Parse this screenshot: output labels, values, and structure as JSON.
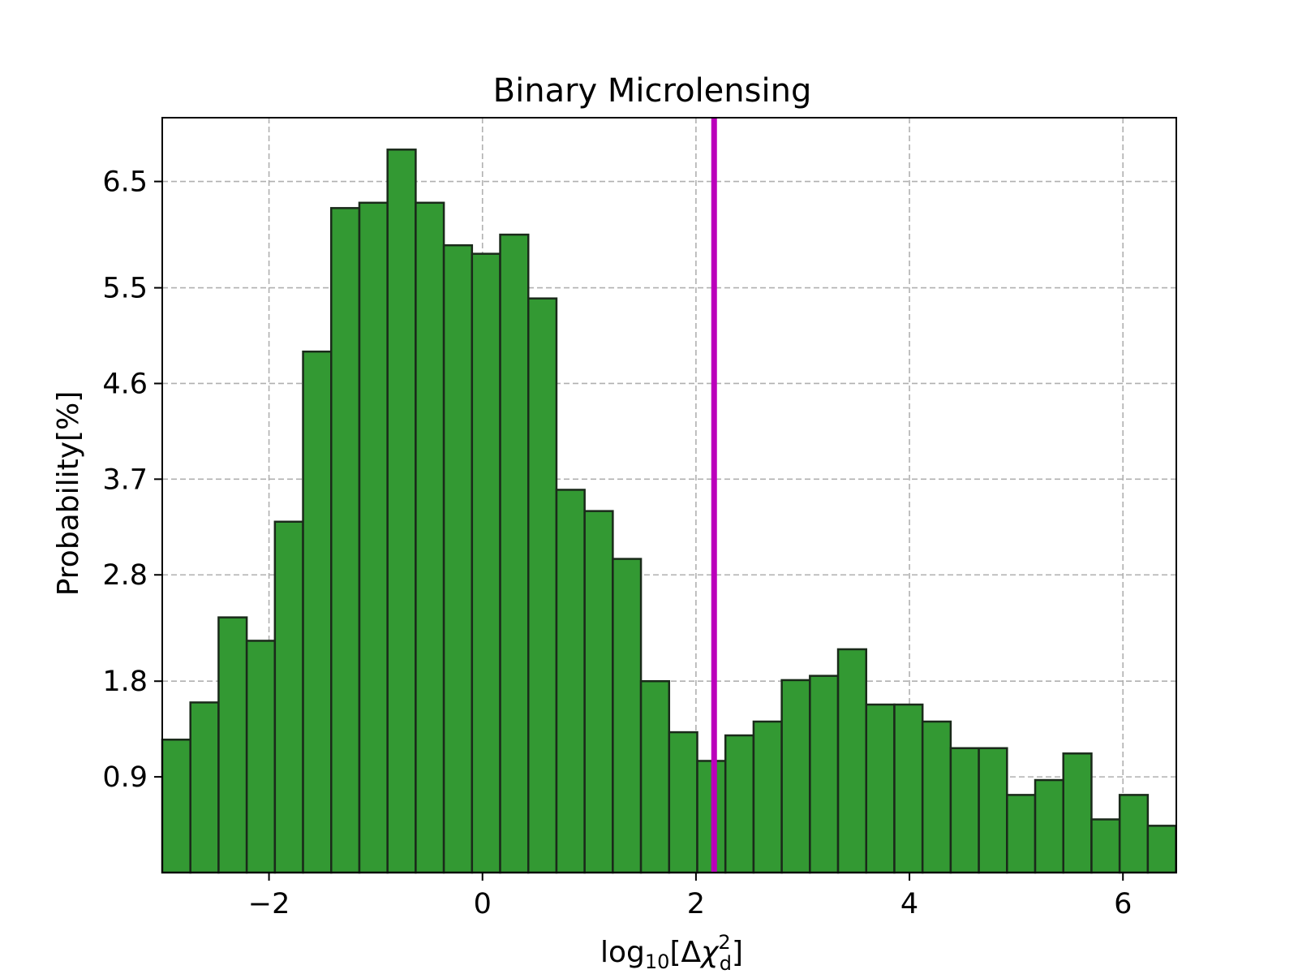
{
  "chart_data": {
    "type": "bar",
    "title": "Binary Microlensing",
    "xlabel": {
      "main": "log",
      "sub": "10",
      "bracket_open": "[Δ",
      "chi": "χ",
      "sup": "2",
      "chi_sub": "d",
      "bracket_close": "]"
    },
    "ylabel": "Probability[%]",
    "xlim": [
      -3.0,
      6.5
    ],
    "ylim": [
      0.0,
      7.1
    ],
    "xticks": [
      -2,
      0,
      2,
      4,
      6
    ],
    "xtick_labels": [
      "−2",
      "0",
      "2",
      "4",
      "6"
    ],
    "yticks": [
      0.9,
      1.8,
      2.8,
      3.7,
      4.6,
      5.5,
      6.5
    ],
    "ytick_labels": [
      "0.9",
      "1.8",
      "2.8",
      "3.7",
      "4.6",
      "5.5",
      "6.5"
    ],
    "grid": true,
    "bar_color": "#339933",
    "edge_color": "#1a2a1a",
    "bin_width": 0.2638,
    "bin_start": -3.0,
    "values": [
      1.25,
      1.6,
      2.4,
      2.18,
      3.3,
      4.9,
      6.25,
      6.3,
      6.8,
      6.3,
      5.9,
      5.82,
      6.0,
      5.4,
      3.6,
      3.4,
      2.95,
      1.8,
      1.32,
      1.05,
      1.29,
      1.42,
      1.81,
      1.85,
      2.1,
      1.58,
      1.58,
      1.42,
      1.17,
      1.17,
      0.73,
      0.87,
      1.12,
      0.5,
      0.73,
      0.44
    ],
    "vline": {
      "x": 2.17,
      "color": "#bb00bb"
    }
  }
}
